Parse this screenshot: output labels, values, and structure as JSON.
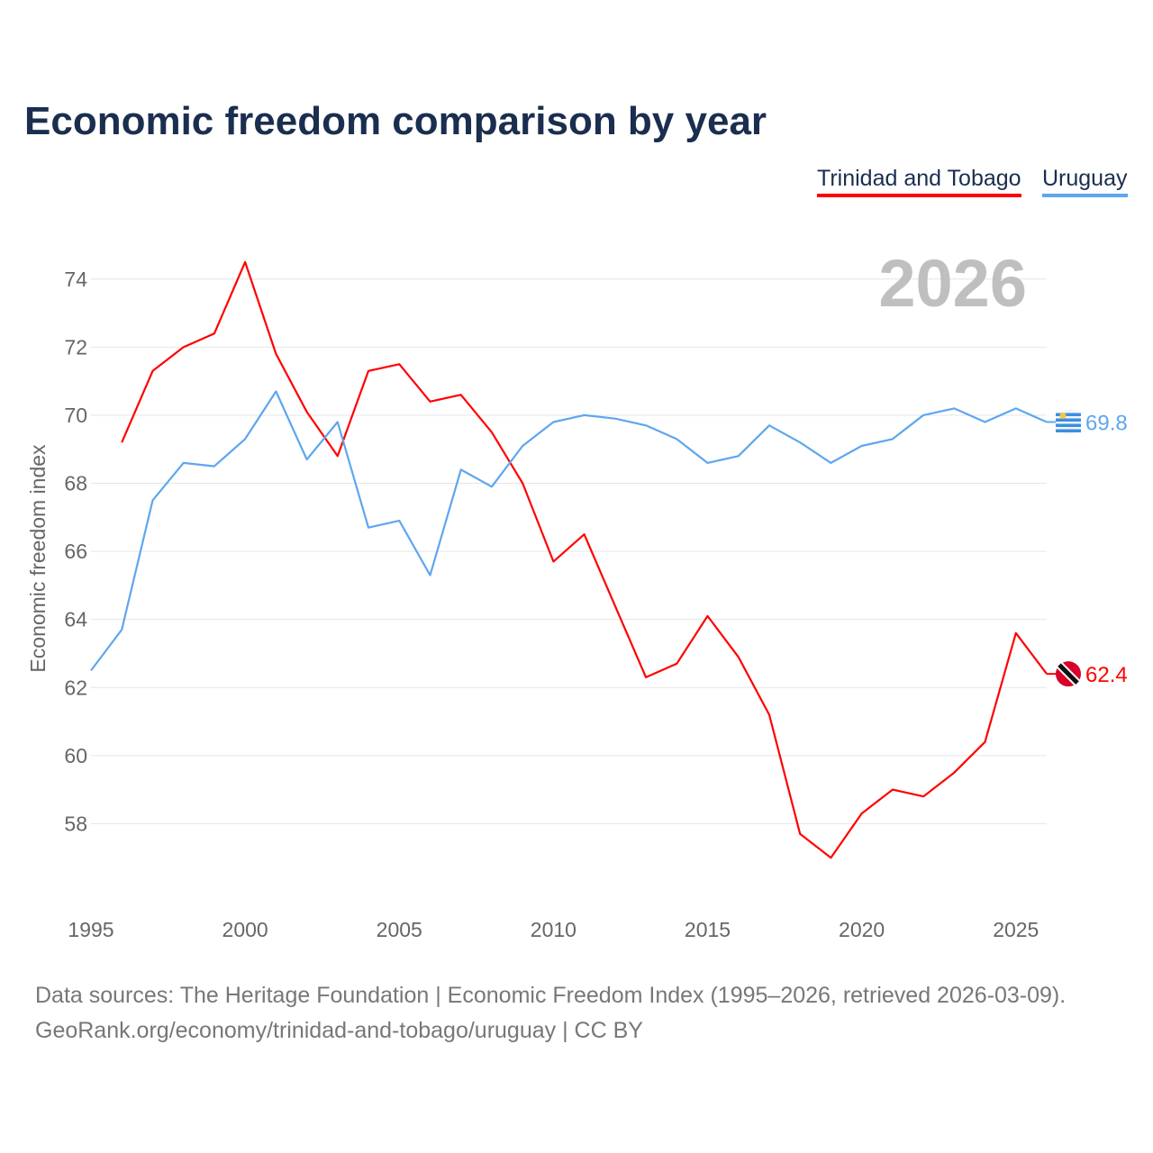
{
  "chart_data": {
    "type": "line",
    "title": "Economic freedom comparison by year",
    "xlabel": "",
    "ylabel": "Economic freedom index",
    "year_label": "2026",
    "xlim": [
      1995,
      2026
    ],
    "ylim": [
      56,
      75
    ],
    "xticks": [
      1995,
      2000,
      2005,
      2010,
      2015,
      2020,
      2025
    ],
    "yticks": [
      58,
      60,
      62,
      64,
      66,
      68,
      70,
      72,
      74
    ],
    "grid": true,
    "legend_position": "top-right",
    "series": [
      {
        "name": "Trinidad and Tobago",
        "color": "#ff0000",
        "end_label": "62.4",
        "flag": "trinidad-and-tobago-flag",
        "x": [
          1996,
          1997,
          1998,
          1999,
          2000,
          2001,
          2002,
          2003,
          2004,
          2005,
          2006,
          2007,
          2008,
          2009,
          2010,
          2011,
          2012,
          2013,
          2014,
          2015,
          2016,
          2017,
          2018,
          2019,
          2020,
          2021,
          2022,
          2023,
          2024,
          2025,
          2026
        ],
        "values": [
          69.2,
          71.3,
          72.0,
          72.4,
          74.5,
          71.8,
          70.1,
          68.8,
          71.3,
          71.5,
          70.4,
          70.6,
          69.5,
          68.0,
          65.7,
          66.5,
          64.4,
          62.3,
          62.7,
          64.1,
          62.9,
          61.2,
          57.7,
          57.0,
          58.3,
          59.0,
          58.8,
          59.5,
          60.4,
          63.6,
          62.4
        ]
      },
      {
        "name": "Uruguay",
        "color": "#5ea6ee",
        "end_label": "69.8",
        "flag": "uruguay-flag",
        "x": [
          1995,
          1996,
          1997,
          1998,
          1999,
          2000,
          2001,
          2002,
          2003,
          2004,
          2005,
          2006,
          2007,
          2008,
          2009,
          2010,
          2011,
          2012,
          2013,
          2014,
          2015,
          2016,
          2017,
          2018,
          2019,
          2020,
          2021,
          2022,
          2023,
          2024,
          2025,
          2026
        ],
        "values": [
          62.5,
          63.7,
          67.5,
          68.6,
          68.5,
          69.3,
          70.7,
          68.7,
          69.8,
          66.7,
          66.9,
          65.3,
          68.4,
          67.9,
          69.1,
          69.8,
          70.0,
          69.9,
          69.7,
          69.3,
          68.6,
          68.8,
          69.7,
          69.2,
          68.6,
          69.1,
          69.3,
          70.0,
          70.2,
          69.8,
          70.2,
          69.8
        ]
      }
    ]
  },
  "source": {
    "line1": "Data sources: The Heritage Foundation | Economic Freedom Index (1995–2026, retrieved 2026-03-09).",
    "line2": "GeoRank.org/economy/trinidad-and-tobago/uruguay | CC BY"
  }
}
